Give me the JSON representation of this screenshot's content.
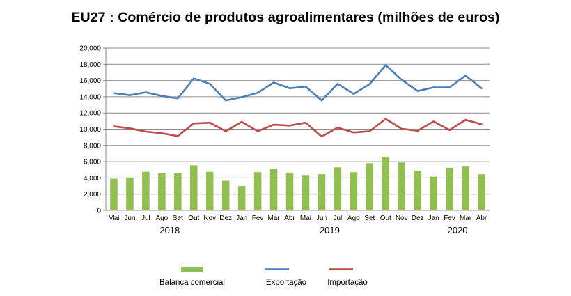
{
  "chart_data": {
    "type": "bar+line",
    "title": "EU27 : Comércio de produtos agroalimentares (milhões de euros)",
    "categories": [
      "Mai",
      "Jun",
      "Jul",
      "Ago",
      "Set",
      "Out",
      "Nov",
      "Dez",
      "Jan",
      "Fev",
      "Mar",
      "Abr",
      "Mai",
      "Jun",
      "Jul",
      "Ago",
      "Set",
      "Out",
      "Nov",
      "Dez",
      "Jan",
      "Fev",
      "Mar",
      "Abr"
    ],
    "year_labels": [
      {
        "label": "2018",
        "from_index": 0,
        "to_index": 7
      },
      {
        "label": "2019",
        "from_index": 8,
        "to_index": 19
      },
      {
        "label": "2020",
        "from_index": 20,
        "to_index": 23
      }
    ],
    "y_tick_labels": [
      "0",
      "2,000",
      "4,000",
      "6,000",
      "8,000",
      "10,000",
      "12,000",
      "14,000",
      "16,000",
      "18,000",
      "20,000"
    ],
    "ylim": [
      0,
      20000
    ],
    "series": [
      {
        "name": "Balança comercial",
        "kind": "bar",
        "color": "#92c050",
        "values": [
          3900,
          4050,
          4750,
          4600,
          4600,
          5550,
          4750,
          3650,
          3000,
          4700,
          5100,
          4650,
          4350,
          4450,
          5300,
          4700,
          5800,
          6600,
          5900,
          4850,
          4150,
          5250,
          5400,
          4450
        ]
      },
      {
        "name": "Exportação",
        "kind": "line",
        "color": "#4a7ebb",
        "values": [
          14450,
          14200,
          14550,
          14100,
          13800,
          16250,
          15600,
          13550,
          13950,
          14500,
          15750,
          15050,
          15250,
          13550,
          15600,
          14350,
          15550,
          17900,
          16100,
          14700,
          15150,
          15150,
          16600,
          15050
        ]
      },
      {
        "name": "Importação",
        "kind": "line",
        "color": "#be4b48",
        "values": [
          10350,
          10100,
          9700,
          9500,
          9150,
          10700,
          10800,
          9750,
          10900,
          9750,
          10550,
          10450,
          10800,
          9100,
          10200,
          9600,
          9750,
          11250,
          10050,
          9800,
          10950,
          9900,
          11150,
          10600
        ]
      }
    ],
    "legend": [
      "Balança comercial",
      "Exportação",
      "Importação"
    ],
    "grid": true
  }
}
